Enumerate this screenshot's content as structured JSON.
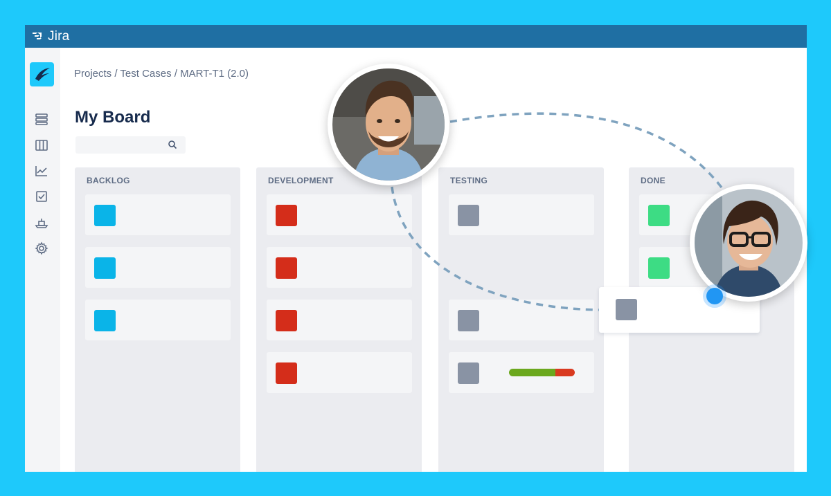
{
  "app": {
    "name": "Jira"
  },
  "breadcrumb": "Projects / Test Cases / MART-T1 (2.0)",
  "page_title": "My Board",
  "search": {
    "placeholder": ""
  },
  "sidebar": {
    "items": [
      "backlog-icon",
      "board-icon",
      "reports-icon",
      "tests-icon",
      "releases-icon",
      "settings-icon"
    ]
  },
  "colors": {
    "accent": "#1ec9fb",
    "topbar": "#1f6fa3",
    "blue": "#0ab4e8",
    "red": "#d42d1a",
    "gray": "#8993a4",
    "green": "#3ddc84",
    "progress_done": "#6ba81e",
    "progress_rest": "#d93a20"
  },
  "columns": [
    {
      "title": "BACKLOG",
      "cards": [
        "blue",
        "blue",
        "blue"
      ]
    },
    {
      "title": "DEVELOPMENT",
      "cards": [
        "red",
        "red",
        "red",
        "red"
      ]
    },
    {
      "title": "TESTING",
      "cards": [
        "gray",
        "gray",
        "gray"
      ]
    },
    {
      "title": "DONE",
      "cards": [
        "green",
        "green"
      ]
    }
  ],
  "dragged_card": {
    "color": "gray"
  },
  "testing_progress": {
    "done_fraction": 0.7
  }
}
